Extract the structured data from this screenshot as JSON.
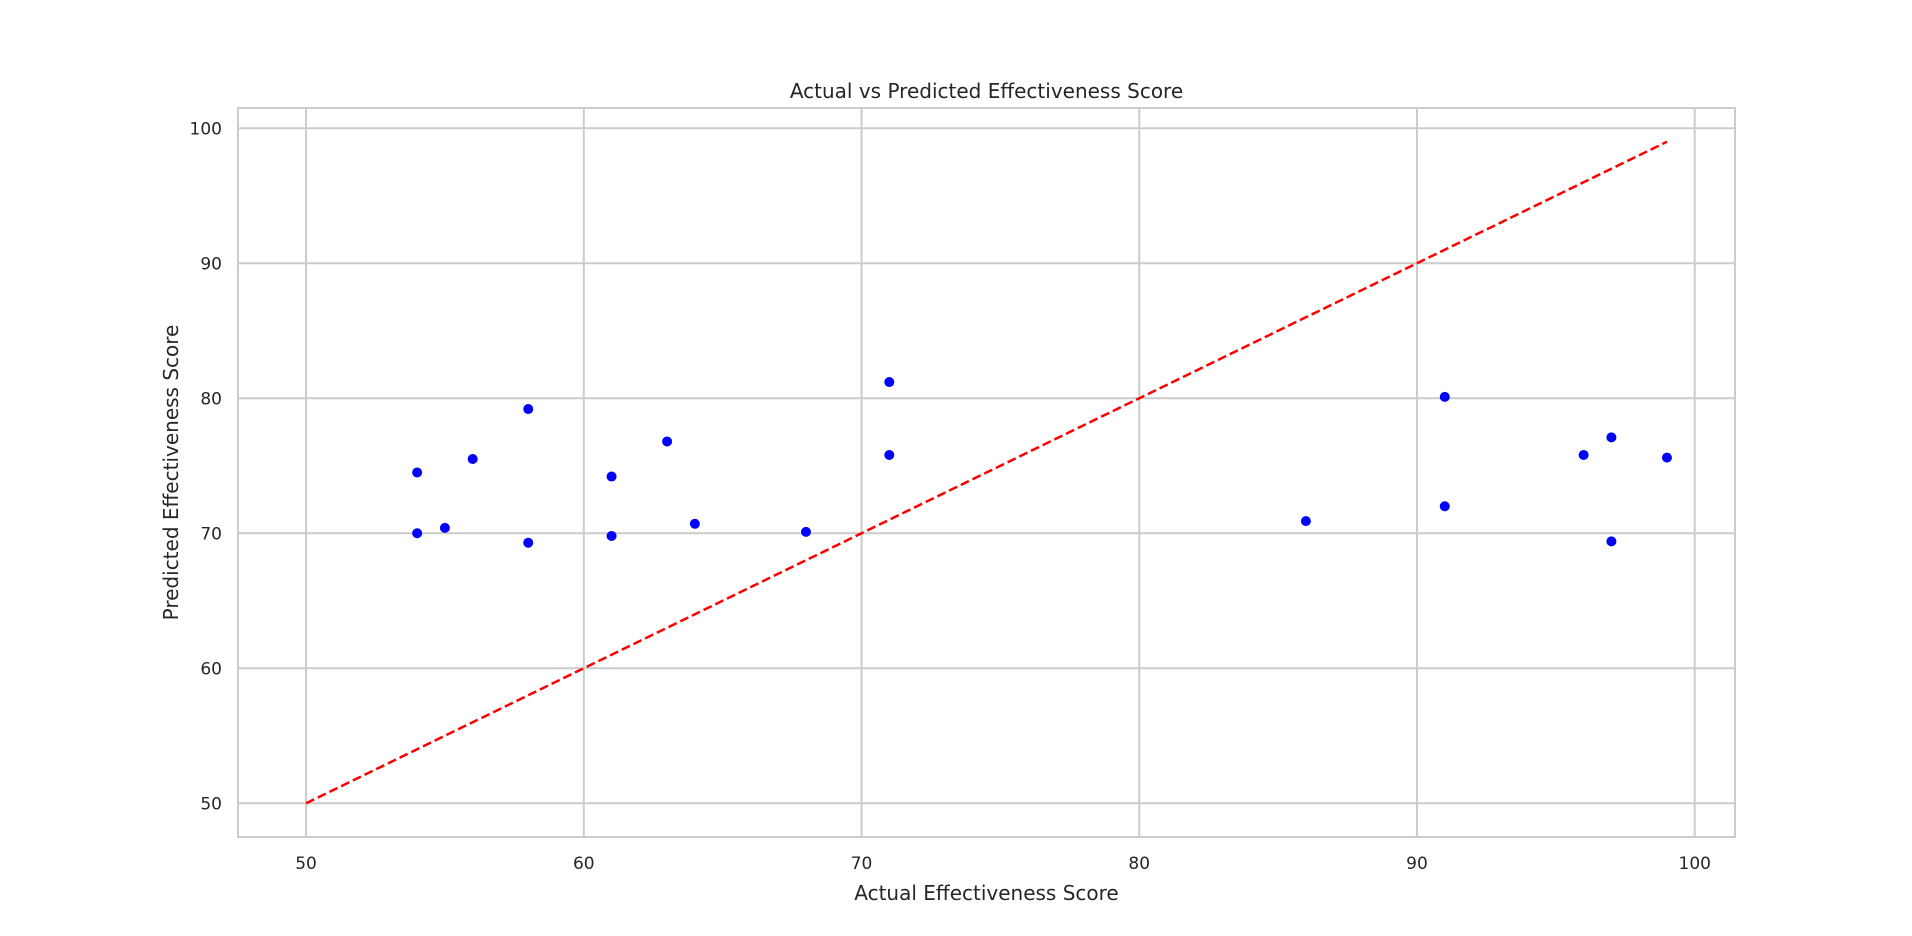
{
  "chart_data": {
    "type": "scatter",
    "title": "Actual vs Predicted Effectiveness Score",
    "xlabel": "Actual Effectiveness Score",
    "ylabel": "Predicted Effectiveness Score",
    "xlim": [
      47.55,
      101.45
    ],
    "ylim": [
      47.5,
      101.5
    ],
    "xticks": [
      50,
      60,
      70,
      80,
      90,
      100
    ],
    "yticks": [
      50,
      60,
      70,
      80,
      90,
      100
    ],
    "grid": true,
    "point_color": "#0000ff",
    "reference_line": {
      "x": [
        50,
        99
      ],
      "y": [
        50,
        99
      ],
      "color": "#ff0000",
      "style": "dashed"
    },
    "points": [
      {
        "x": 54,
        "y": 74.5
      },
      {
        "x": 54,
        "y": 70.0
      },
      {
        "x": 55,
        "y": 70.4
      },
      {
        "x": 56,
        "y": 75.5
      },
      {
        "x": 58,
        "y": 79.2
      },
      {
        "x": 58,
        "y": 69.3
      },
      {
        "x": 61,
        "y": 74.2
      },
      {
        "x": 61,
        "y": 69.8
      },
      {
        "x": 63,
        "y": 76.8
      },
      {
        "x": 64,
        "y": 70.7
      },
      {
        "x": 68,
        "y": 70.1
      },
      {
        "x": 71,
        "y": 81.2
      },
      {
        "x": 71,
        "y": 75.8
      },
      {
        "x": 86,
        "y": 70.9
      },
      {
        "x": 91,
        "y": 80.1
      },
      {
        "x": 91,
        "y": 72.0
      },
      {
        "x": 96,
        "y": 75.8
      },
      {
        "x": 97,
        "y": 77.1
      },
      {
        "x": 97,
        "y": 69.4
      },
      {
        "x": 99,
        "y": 75.6
      }
    ]
  }
}
